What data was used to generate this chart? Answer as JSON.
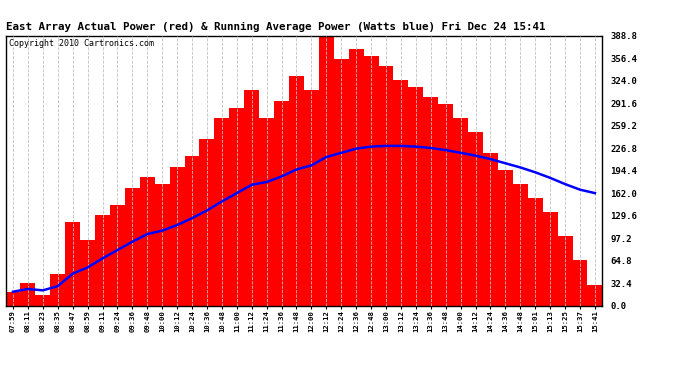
{
  "title": "East Array Actual Power (red) & Running Average Power (Watts blue) Fri Dec 24 15:41",
  "copyright": "Copyright 2010 Cartronics.com",
  "bg_color": "#ffffff",
  "plot_bg_color": "#ffffff",
  "bar_color": "#ff0000",
  "line_color": "#0000ff",
  "grid_color": "#c0c0c0",
  "ymin": 0.0,
  "ymax": 388.8,
  "ytick_step": 32.4,
  "time_labels": [
    "07:59",
    "08:11",
    "08:23",
    "08:35",
    "08:47",
    "08:59",
    "09:11",
    "09:24",
    "09:36",
    "09:48",
    "10:00",
    "10:12",
    "10:24",
    "10:36",
    "10:48",
    "11:00",
    "11:12",
    "11:24",
    "11:36",
    "11:48",
    "12:00",
    "12:12",
    "12:24",
    "12:36",
    "12:48",
    "13:00",
    "13:12",
    "13:24",
    "13:36",
    "13:48",
    "14:00",
    "14:12",
    "14:24",
    "14:36",
    "14:48",
    "15:01",
    "15:13",
    "15:25",
    "15:37",
    "15:41"
  ],
  "power_values": [
    20,
    32,
    15,
    45,
    120,
    95,
    130,
    145,
    170,
    185,
    175,
    200,
    215,
    240,
    270,
    285,
    310,
    270,
    295,
    330,
    310,
    388,
    355,
    370,
    360,
    345,
    325,
    315,
    300,
    290,
    270,
    250,
    220,
    195,
    175,
    155,
    135,
    100,
    65,
    30
  ],
  "avg_values": [
    20,
    24,
    22,
    28,
    46,
    55,
    68,
    80,
    92,
    103,
    108,
    116,
    126,
    137,
    150,
    162,
    174,
    178,
    186,
    196,
    202,
    214,
    220,
    226,
    229,
    230,
    230,
    229,
    227,
    224,
    220,
    216,
    211,
    205,
    199,
    192,
    184,
    175,
    167,
    162
  ]
}
